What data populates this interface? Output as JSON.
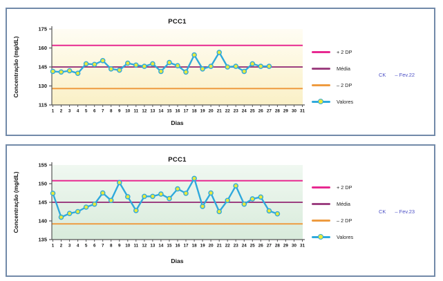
{
  "page": {
    "background": "#ffffff",
    "panel_border_color": "#7189A8"
  },
  "chart_data": [
    {
      "type": "line",
      "title": "PCC1",
      "xlabel": "Dias",
      "ylabel": "Concentração (mg/dL)",
      "ylim": [
        115,
        175
      ],
      "yticks": [
        115,
        130,
        145,
        160,
        175
      ],
      "xticks": [
        1,
        2,
        3,
        4,
        5,
        6,
        7,
        8,
        9,
        10,
        11,
        12,
        13,
        14,
        15,
        16,
        17,
        18,
        19,
        20,
        21,
        22,
        23,
        24,
        25,
        26,
        27,
        28,
        29,
        30,
        31
      ],
      "x": [
        1,
        2,
        3,
        4,
        5,
        6,
        7,
        8,
        9,
        10,
        11,
        12,
        13,
        14,
        15,
        16,
        17,
        18,
        19,
        20,
        21,
        22,
        23,
        24,
        25,
        26,
        27
      ],
      "series": [
        {
          "name": "Valores",
          "values": [
            141.5,
            141,
            142,
            140,
            147.5,
            147,
            150,
            143.5,
            142.5,
            148,
            146.5,
            145.5,
            147.5,
            141.5,
            148.5,
            146,
            141,
            154.5,
            143.5,
            145.5,
            156.5,
            145,
            145.5,
            141.5,
            147.5,
            145.5,
            145.5
          ]
        }
      ],
      "control_lines": {
        "plus_2dp": 162,
        "media": 145,
        "minus_2dp": 128
      },
      "legend": [
        {
          "label": "+ 2 DP",
          "color": "#E72990",
          "marker": false
        },
        {
          "label": "Média",
          "color": "#9C3F80",
          "marker": false
        },
        {
          "label": "– 2 DP",
          "color": "#EE9B3F",
          "marker": false
        },
        {
          "label": "Valores",
          "color": "#2FA9DC",
          "marker": true
        }
      ],
      "series_color": "#2FA9DC",
      "marker_fill": "#E9E93C",
      "bg_gradient": [
        "#FFFDF4",
        "#FAF0C6"
      ],
      "grid": "off",
      "legend_position": "right",
      "annotation": {
        "ck": "CK",
        "period": "– Fev.22",
        "color": "#4B4FC5"
      }
    },
    {
      "type": "line",
      "title": "PCC1",
      "xlabel": "Dias",
      "ylabel": "Concentração (mg/dL)",
      "ylim": [
        135,
        155
      ],
      "yticks": [
        135,
        140,
        145,
        150,
        155
      ],
      "xticks": [
        1,
        2,
        3,
        4,
        5,
        6,
        7,
        8,
        9,
        10,
        11,
        12,
        13,
        14,
        15,
        16,
        17,
        18,
        19,
        20,
        21,
        22,
        23,
        24,
        25,
        26,
        27,
        28,
        29,
        30,
        31
      ],
      "x": [
        1,
        2,
        3,
        4,
        5,
        6,
        7,
        8,
        9,
        10,
        11,
        12,
        13,
        14,
        15,
        16,
        17,
        18,
        19,
        20,
        21,
        22,
        23,
        24,
        25,
        26,
        27,
        28
      ],
      "series": [
        {
          "name": "Valores",
          "values": [
            147.4,
            141,
            142,
            142.5,
            143.7,
            144.5,
            147.5,
            145.5,
            150.3,
            146.5,
            142.8,
            146.6,
            146.6,
            147.2,
            146,
            148.6,
            147.4,
            151.4,
            143.9,
            147.5,
            142.5,
            145.5,
            149.4,
            144.5,
            145.9,
            146.4,
            142.7,
            141.9
          ]
        }
      ],
      "control_lines": {
        "plus_2dp": 150.8,
        "media": 145,
        "minus_2dp": 139.2
      },
      "legend": [
        {
          "label": "+ 2 DP",
          "color": "#E72990",
          "marker": false
        },
        {
          "label": "Média",
          "color": "#9C3F80",
          "marker": false
        },
        {
          "label": "– 2 DP",
          "color": "#EE9B3F",
          "marker": false
        },
        {
          "label": "Valores",
          "color": "#2FA9DC",
          "marker": true
        }
      ],
      "series_color": "#2FA9DC",
      "marker_fill": "#E9E93C",
      "bg_gradient": [
        "#F0F8F1",
        "#D8EBDB"
      ],
      "grid": "off",
      "legend_position": "right",
      "annotation": {
        "ck": "CK",
        "period": "– Fev.23",
        "color": "#4B4FC5"
      }
    }
  ]
}
